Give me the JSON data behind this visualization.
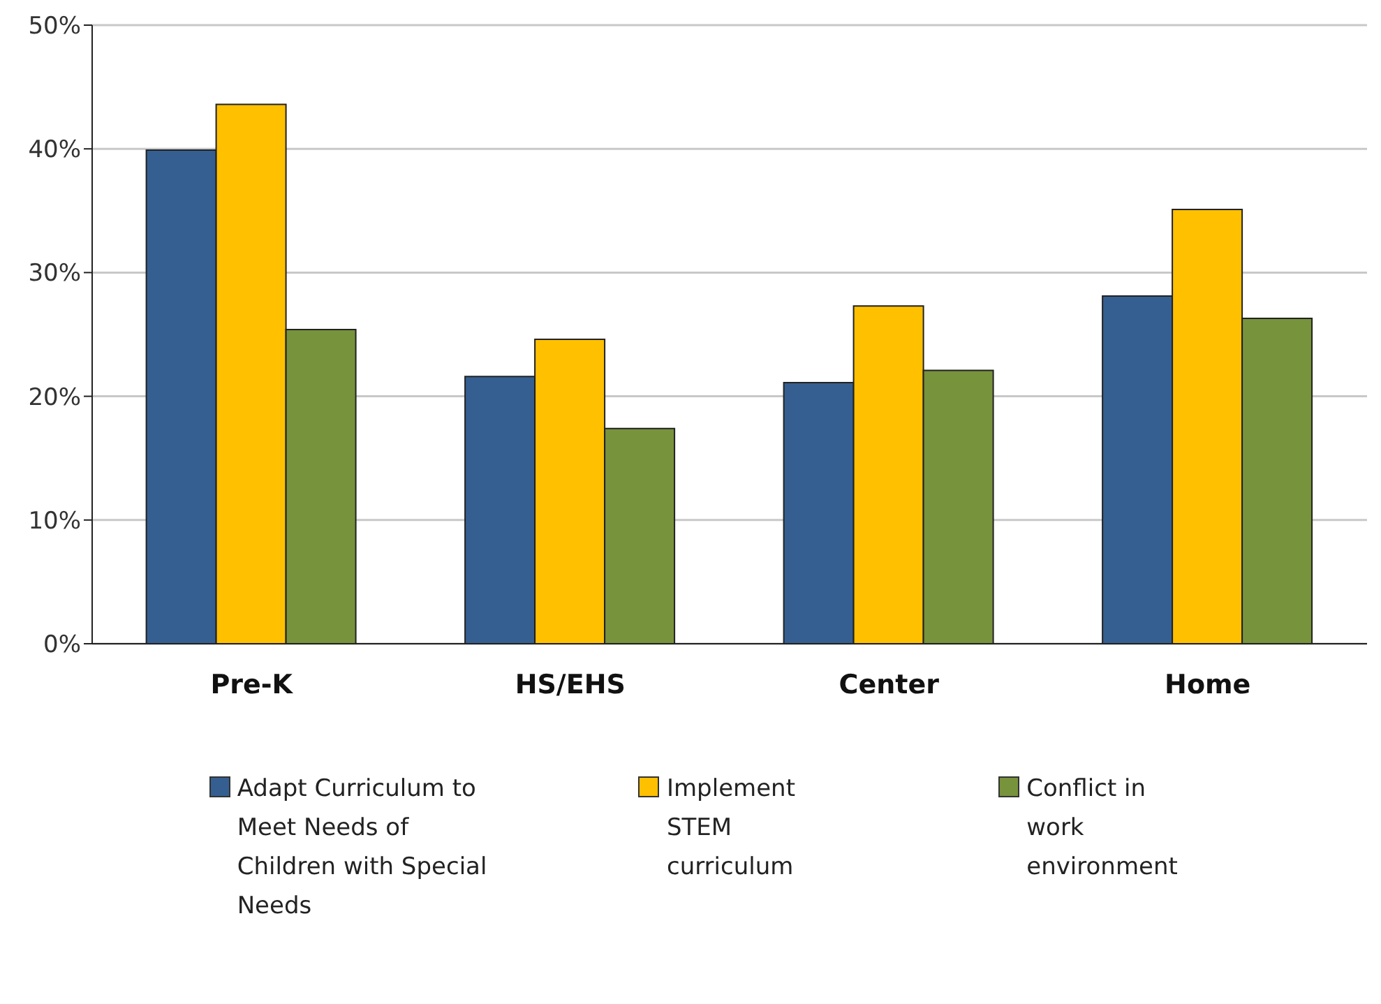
{
  "chart_data": {
    "type": "bar",
    "categories": [
      "Pre-K",
      "HS/EHS",
      "Center",
      "Home"
    ],
    "series": [
      {
        "name": "Adapt Curriculum to Meet Needs of Children with Special Needs",
        "color": "#355f91",
        "values": [
          39.9,
          21.6,
          21.1,
          28.1
        ]
      },
      {
        "name": "Implement STEM curriculum",
        "color": "#ffc000",
        "values": [
          43.6,
          24.6,
          27.3,
          35.1
        ]
      },
      {
        "name": "Conflict in work environment",
        "color": "#77933c",
        "values": [
          25.4,
          17.4,
          22.1,
          26.3
        ]
      }
    ],
    "ylim": [
      0,
      50
    ],
    "yticks": [
      {
        "value": 0,
        "label": "0%"
      },
      {
        "value": 10,
        "label": "10%"
      },
      {
        "value": 20,
        "label": "20%"
      },
      {
        "value": 30,
        "label": "30%"
      },
      {
        "value": 40,
        "label": "40%"
      },
      {
        "value": 50,
        "label": "50%"
      }
    ],
    "grid": "y",
    "legend": "bottom"
  }
}
